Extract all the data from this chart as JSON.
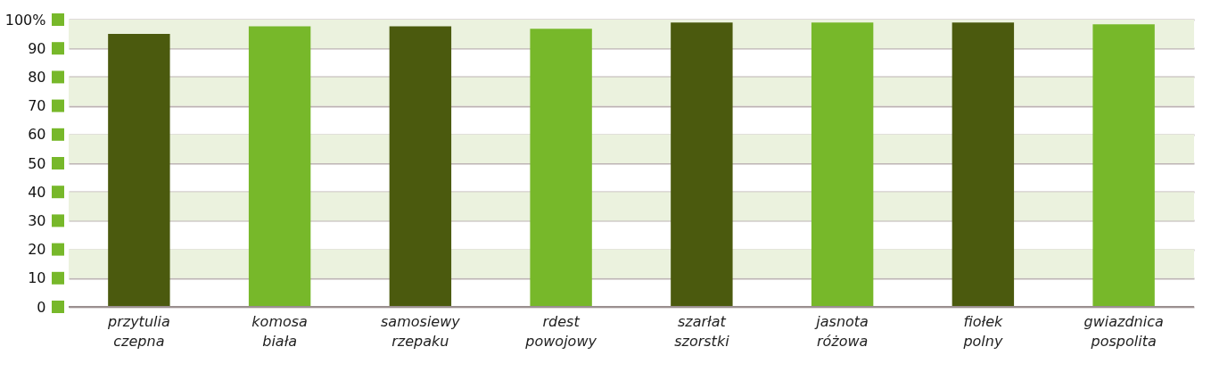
{
  "chart_data": {
    "type": "bar",
    "categories": [
      "przytulia czepna",
      "komosa biała",
      "samosiewy rzepaku",
      "rdest powojowy",
      "szarłat szorstki",
      "jasnota różowa",
      "fiołek polny",
      "gwiazdnica pospolita"
    ],
    "values": [
      95,
      97.7,
      97.7,
      96.8,
      99,
      99,
      99,
      98.4
    ],
    "colors": [
      "#4b5a0e",
      "#77b82a",
      "#4b5a0e",
      "#77b82a",
      "#4b5a0e",
      "#77b82a",
      "#4b5a0e",
      "#77b82a"
    ],
    "ylim": [
      0,
      100
    ],
    "yticks": [
      0,
      10,
      20,
      30,
      40,
      50,
      60,
      70,
      80,
      90,
      {
        "value": 100,
        "label": "100%"
      }
    ],
    "grid": "y",
    "bands": [
      {
        "axis": "y",
        "from": 10,
        "to": 20,
        "color": "#ebf2de"
      },
      {
        "axis": "y",
        "from": 30,
        "to": 40,
        "color": "#ebf2de"
      },
      {
        "axis": "y",
        "from": 50,
        "to": 60,
        "color": "#ebf2de"
      },
      {
        "axis": "y",
        "from": 70,
        "to": 80,
        "color": "#ebf2de"
      },
      {
        "axis": "y",
        "from": 90,
        "to": 100,
        "color": "#ebf2de"
      }
    ]
  }
}
